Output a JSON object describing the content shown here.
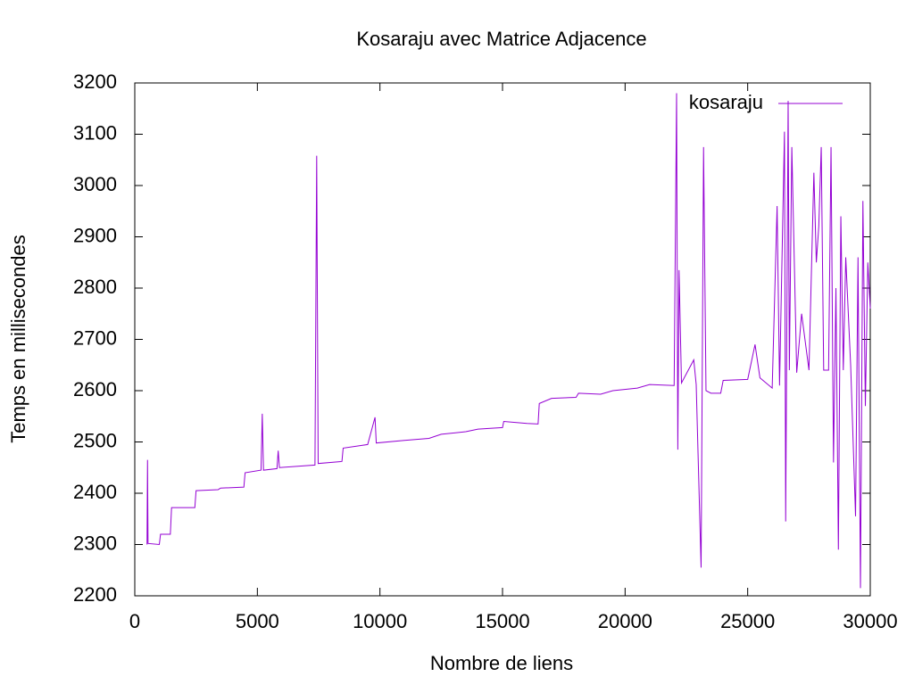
{
  "chart_data": {
    "type": "line",
    "title": "Kosaraju avec Matrice Adjacence",
    "x_label": "Nombre de liens",
    "y_label": "Temps en millisecondes",
    "x": [
      500,
      520,
      540,
      1000,
      1050,
      1450,
      1500,
      2450,
      2500,
      3400,
      3500,
      4450,
      4500,
      5150,
      5200,
      5250,
      5800,
      5850,
      5900,
      7350,
      7420,
      7480,
      8450,
      8500,
      9500,
      9800,
      9850,
      11000,
      12000,
      12500,
      13500,
      14000,
      15000,
      15050,
      16000,
      16450,
      16500,
      17000,
      18000,
      18100,
      19000,
      19500,
      20500,
      21000,
      22000,
      22100,
      22150,
      22200,
      22300,
      22800,
      22900,
      23100,
      23200,
      23300,
      23500,
      23900,
      24000,
      25000,
      25300,
      25500,
      26000,
      26200,
      26300,
      26500,
      26550,
      26650,
      26700,
      26800,
      27000,
      27200,
      27500,
      27700,
      27800,
      27900,
      28000,
      28100,
      28300,
      28400,
      28500,
      28600,
      28700,
      28800,
      28900,
      29000,
      29200,
      29400,
      29500,
      29600,
      29700,
      29800,
      29900,
      30000
    ],
    "series": [
      {
        "name": "kosaraju",
        "color": "#9400d3",
        "values": [
          2300,
          2465,
          2302,
          2300,
          2320,
          2320,
          2372,
          2372,
          2405,
          2407,
          2410,
          2412,
          2440,
          2445,
          2555,
          2445,
          2448,
          2483,
          2450,
          2455,
          3058,
          2458,
          2462,
          2488,
          2495,
          2548,
          2498,
          2503,
          2507,
          2515,
          2520,
          2525,
          2528,
          2540,
          2536,
          2535,
          2575,
          2585,
          2587,
          2595,
          2593,
          2600,
          2605,
          2612,
          2610,
          3180,
          2485,
          2835,
          2615,
          2660,
          2612,
          2255,
          3075,
          2600,
          2595,
          2595,
          2620,
          2622,
          2690,
          2625,
          2605,
          2960,
          2610,
          3105,
          2345,
          3165,
          2640,
          3075,
          2635,
          2750,
          2640,
          3025,
          2850,
          2920,
          3075,
          2640,
          2640,
          3075,
          2460,
          2800,
          2290,
          2940,
          2640,
          2860,
          2650,
          2355,
          2860,
          2215,
          2970,
          2570,
          2850,
          2760
        ]
      }
    ],
    "xlim": [
      0,
      30000
    ],
    "xticks": [
      0,
      5000,
      10000,
      15000,
      20000,
      25000,
      30000
    ],
    "ylim": [
      2200,
      3200
    ],
    "yticks": [
      2200,
      2300,
      2400,
      2500,
      2600,
      2700,
      2800,
      2900,
      3000,
      3100,
      3200
    ],
    "grid": false,
    "legend": "top-right"
  }
}
